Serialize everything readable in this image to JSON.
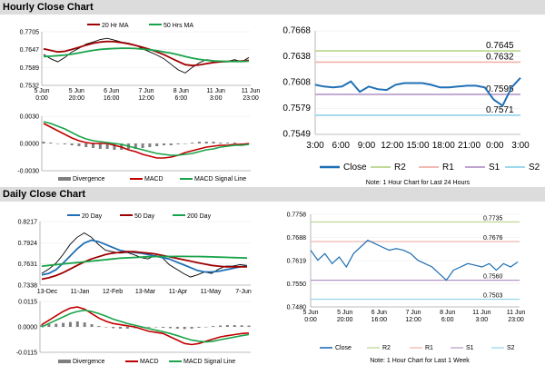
{
  "sections": {
    "hourly_title": "Hourly Close Chart",
    "daily_title": "Daily Close Chart"
  },
  "colors": {
    "close": "#1f6fb5",
    "ma_short": "#a00000",
    "ma_long": "#19a34a",
    "price_black": "#000000",
    "r2": "#b9d58a",
    "r1": "#f0b0a8",
    "s1": "#b497c8",
    "s2": "#8fd3ea",
    "divergence": "#7f7f7f",
    "macd": "#c00000",
    "signal": "#19a34a"
  },
  "chart_data": [
    {
      "id": "hourly-price",
      "type": "line",
      "legend": [
        "20 Hr MA",
        "50 Hrs MA"
      ],
      "yticks": [
        "0.7705",
        "0.7647",
        "0.7589",
        "0.7532"
      ],
      "xticks": [
        [
          "5 Jun",
          "0:00"
        ],
        [
          "5 Jun",
          "20:00"
        ],
        [
          "6 Jun",
          "16:00"
        ],
        [
          "7 Jun",
          "12:00"
        ],
        [
          "8 Jun",
          "6:00"
        ],
        [
          "11 Jun",
          "3:00"
        ],
        [
          "11 Jun",
          "23:00"
        ]
      ],
      "ylim": [
        0.7532,
        0.7705
      ],
      "series": [
        {
          "name": "Close",
          "values": [
            0.7632,
            0.7618,
            0.7608,
            0.7622,
            0.764,
            0.7652,
            0.7665,
            0.7672,
            0.768,
            0.7684,
            0.7678,
            0.7672,
            0.7668,
            0.7662,
            0.765,
            0.764,
            0.763,
            0.7618,
            0.76,
            0.7582,
            0.7572,
            0.759,
            0.7605,
            0.7615,
            0.7612,
            0.7608,
            0.761,
            0.7615,
            0.7608,
            0.7622
          ]
        },
        {
          "name": "20 Hr MA",
          "values": [
            0.765,
            0.7645,
            0.764,
            0.7642,
            0.7648,
            0.7655,
            0.7662,
            0.7668,
            0.7672,
            0.7674,
            0.7673,
            0.767,
            0.7666,
            0.7661,
            0.7655,
            0.7648,
            0.764,
            0.7631,
            0.762,
            0.7609,
            0.7599,
            0.7596,
            0.7598,
            0.7602,
            0.7606,
            0.7608,
            0.7609,
            0.761,
            0.7611,
            0.7613
          ]
        },
        {
          "name": "50 Hrs MA",
          "values": [
            0.7625,
            0.7626,
            0.7628,
            0.763,
            0.7633,
            0.7637,
            0.7641,
            0.7645,
            0.7648,
            0.765,
            0.7651,
            0.7652,
            0.7652,
            0.7651,
            0.7649,
            0.7647,
            0.7644,
            0.764,
            0.7636,
            0.7631,
            0.7625,
            0.762,
            0.7616,
            0.7613,
            0.7611,
            0.761,
            0.7609,
            0.7609,
            0.7609,
            0.761
          ]
        }
      ]
    },
    {
      "id": "hourly-macd",
      "type": "bar",
      "yticks": [
        "0.0030",
        "0.0000",
        "-0.0030"
      ],
      "ylim": [
        -0.003,
        0.003
      ],
      "legend": [
        "Divergence",
        "MACD",
        "MACD Signal Line"
      ],
      "series": [
        {
          "name": "Divergence",
          "values": [
            0.0002,
            0.0001,
            0.0,
            -0.0001,
            -0.0002,
            -0.0003,
            -0.0004,
            -0.0005,
            -0.0006,
            -0.0006,
            -0.0007,
            -0.0007,
            -0.0006,
            -0.0006,
            -0.0005,
            -0.0004,
            -0.0003,
            -0.0002,
            -0.0002,
            -0.0001,
            0.0,
            0.0001,
            0.0002,
            0.0002,
            0.0002,
            0.0001,
            0.0001,
            0.0001,
            0.0,
            0.0
          ]
        },
        {
          "name": "MACD",
          "values": [
            0.0022,
            0.0018,
            0.0014,
            0.001,
            0.0006,
            0.0003,
            0.0001,
            0.0,
            0.0,
            0.0,
            -0.0002,
            -0.0004,
            -0.0007,
            -0.0009,
            -0.0012,
            -0.0014,
            -0.0016,
            -0.0016,
            -0.0015,
            -0.0013,
            -0.001,
            -0.0008,
            -0.0006,
            -0.0004,
            -0.0003,
            -0.0002,
            -0.0002,
            -0.0001,
            -0.0001,
            0.0
          ]
        },
        {
          "name": "MACD Signal Line",
          "values": [
            0.0024,
            0.0022,
            0.0019,
            0.0016,
            0.0012,
            0.0008,
            0.0005,
            0.0003,
            0.0002,
            0.0001,
            0.0,
            -0.0001,
            -0.0003,
            -0.0005,
            -0.0007,
            -0.0009,
            -0.0011,
            -0.0012,
            -0.0013,
            -0.0013,
            -0.0012,
            -0.0011,
            -0.0009,
            -0.0007,
            -0.0006,
            -0.0004,
            -0.0003,
            -0.0002,
            -0.0002,
            -0.0001
          ]
        }
      ]
    },
    {
      "id": "hourly-24h",
      "type": "line",
      "yticks": [
        "0.7668",
        "0.7638",
        "0.7608",
        "0.7579",
        "0.7549"
      ],
      "ylim": [
        0.7549,
        0.7668
      ],
      "xticks": [
        "3:00",
        "6:00",
        "9:00",
        "12:00",
        "15:00",
        "18:00",
        "21:00",
        "0:00",
        "3:00"
      ],
      "levels": [
        {
          "name": "R2",
          "value": 0.7645,
          "label": "0.7645"
        },
        {
          "name": "R1",
          "value": 0.7632,
          "label": "0.7632"
        },
        {
          "name": "S1",
          "value": 0.7595,
          "label": "0.7595"
        },
        {
          "name": "S2",
          "value": 0.7571,
          "label": "0.7571"
        }
      ],
      "legend": [
        "Close",
        "R2",
        "R1",
        "S1",
        "S2"
      ],
      "note": "Note: 1 Hour Chart for Last 24 Hours",
      "series": [
        {
          "name": "Close",
          "values": [
            0.7606,
            0.7604,
            0.7603,
            0.7604,
            0.761,
            0.7598,
            0.7604,
            0.7601,
            0.76,
            0.7606,
            0.7608,
            0.7608,
            0.7608,
            0.7606,
            0.7603,
            0.7603,
            0.7604,
            0.7605,
            0.7605,
            0.7603,
            0.7589,
            0.7582,
            0.7603,
            0.7614
          ]
        }
      ]
    },
    {
      "id": "daily-price",
      "type": "line",
      "legend": [
        "20 Day",
        "50 Day",
        "200 Day"
      ],
      "yticks": [
        "0.8217",
        "0.7924",
        "0.7631",
        "0.7338"
      ],
      "ylim": [
        0.7338,
        0.8217
      ],
      "xticks": [
        "13-Dec",
        "11-Jan",
        "12-Feb",
        "13-Mar",
        "11-Apr",
        "11-May",
        "7-Jun"
      ],
      "series": [
        {
          "name": "Close",
          "values": [
            0.75,
            0.756,
            0.764,
            0.776,
            0.79,
            0.8,
            0.806,
            0.8,
            0.79,
            0.782,
            0.78,
            0.778,
            0.779,
            0.776,
            0.772,
            0.77,
            0.775,
            0.772,
            0.762,
            0.756,
            0.75,
            0.745,
            0.748,
            0.752,
            0.75,
            0.756,
            0.76,
            0.76,
            0.762,
            0.761
          ]
        },
        {
          "name": "20 Day",
          "values": [
            0.748,
            0.75,
            0.755,
            0.764,
            0.774,
            0.784,
            0.792,
            0.796,
            0.794,
            0.79,
            0.786,
            0.782,
            0.78,
            0.779,
            0.778,
            0.776,
            0.774,
            0.772,
            0.77,
            0.766,
            0.762,
            0.758,
            0.754,
            0.752,
            0.752,
            0.753,
            0.755,
            0.757,
            0.759,
            0.76
          ]
        },
        {
          "name": "50 Day",
          "values": [
            0.742,
            0.744,
            0.747,
            0.751,
            0.756,
            0.761,
            0.766,
            0.77,
            0.773,
            0.776,
            0.778,
            0.779,
            0.78,
            0.78,
            0.779,
            0.778,
            0.777,
            0.775,
            0.773,
            0.771,
            0.769,
            0.767,
            0.765,
            0.763,
            0.761,
            0.76,
            0.759,
            0.759,
            0.759,
            0.759
          ]
        },
        {
          "name": "200 Day",
          "values": [
            0.76,
            0.761,
            0.762,
            0.763,
            0.764,
            0.765,
            0.766,
            0.767,
            0.768,
            0.769,
            0.77,
            0.771,
            0.7715,
            0.772,
            0.7725,
            0.773,
            0.7732,
            0.7733,
            0.7734,
            0.7735,
            0.7735,
            0.7734,
            0.7733,
            0.7731,
            0.7728,
            0.7725,
            0.7722,
            0.7719,
            0.7716,
            0.7712
          ]
        }
      ]
    },
    {
      "id": "daily-macd",
      "type": "bar",
      "yticks": [
        "0.0115",
        "0.0000",
        "-0.0115"
      ],
      "ylim": [
        -0.0115,
        0.0115
      ],
      "legend": [
        "Divergence",
        "MACD",
        "MACD Signal Line"
      ],
      "series": [
        {
          "name": "Divergence",
          "values": [
            0.001,
            0.0012,
            0.0014,
            0.0018,
            0.0022,
            0.0025,
            0.002,
            0.0012,
            0.0004,
            -0.0002,
            -0.0006,
            -0.0008,
            -0.0008,
            -0.0006,
            -0.0004,
            -0.0003,
            -0.0002,
            -0.0004,
            -0.0006,
            -0.0008,
            -0.001,
            -0.0008,
            -0.0004,
            0.0,
            0.0004,
            0.0006,
            0.0008,
            0.0008,
            0.0007,
            0.0006
          ]
        },
        {
          "name": "MACD",
          "values": [
            0.001,
            0.003,
            0.005,
            0.007,
            0.0085,
            0.009,
            0.008,
            0.006,
            0.004,
            0.0025,
            0.0015,
            0.001,
            0.0005,
            0.0,
            -0.001,
            -0.002,
            -0.0025,
            -0.003,
            -0.0045,
            -0.006,
            -0.0075,
            -0.008,
            -0.0075,
            -0.0065,
            -0.0055,
            -0.0045,
            -0.004,
            -0.0035,
            -0.003,
            -0.0028
          ]
        },
        {
          "name": "MACD Signal Line",
          "values": [
            0.0,
            0.0015,
            0.003,
            0.0045,
            0.006,
            0.007,
            0.0075,
            0.007,
            0.006,
            0.0048,
            0.0035,
            0.0025,
            0.0015,
            0.0008,
            0.0,
            -0.0008,
            -0.0015,
            -0.0022,
            -0.003,
            -0.004,
            -0.005,
            -0.006,
            -0.0065,
            -0.0068,
            -0.0065,
            -0.0058,
            -0.0052,
            -0.0046,
            -0.004,
            -0.0035
          ]
        }
      ]
    },
    {
      "id": "daily-week",
      "type": "line",
      "yticks": [
        "0.7758",
        "0.7688",
        "0.7619",
        "0.7550",
        "0.7480"
      ],
      "ylim": [
        0.748,
        0.7758
      ],
      "xticks": [
        [
          "5 Jun",
          "0:00"
        ],
        [
          "5 Jun",
          "20:00"
        ],
        [
          "6 Jun",
          "16:00"
        ],
        [
          "7 Jun",
          "12:00"
        ],
        [
          "8 Jun",
          "6:00"
        ],
        [
          "11 Jun",
          "3:00"
        ],
        [
          "11 Jun",
          "23:00"
        ]
      ],
      "levels": [
        {
          "name": "R2",
          "value": 0.7735,
          "label": "0.7735"
        },
        {
          "name": "R1",
          "value": 0.7676,
          "label": "0.7676"
        },
        {
          "name": "S1",
          "value": 0.756,
          "label": "0.7560"
        },
        {
          "name": "S2",
          "value": 0.7503,
          "label": "0.7503"
        }
      ],
      "legend": [
        "Close",
        "R2",
        "R1",
        "S1",
        "S2"
      ],
      "note": "Note: 1 Hour Chart for Last 1 Week",
      "series": [
        {
          "name": "Close",
          "values": [
            0.765,
            0.762,
            0.764,
            0.761,
            0.763,
            0.76,
            0.764,
            0.766,
            0.768,
            0.767,
            0.766,
            0.765,
            0.7655,
            0.765,
            0.764,
            0.762,
            0.761,
            0.76,
            0.758,
            0.756,
            0.759,
            0.76,
            0.761,
            0.7605,
            0.76,
            0.761,
            0.759,
            0.761,
            0.76,
            0.7615
          ]
        }
      ]
    }
  ]
}
